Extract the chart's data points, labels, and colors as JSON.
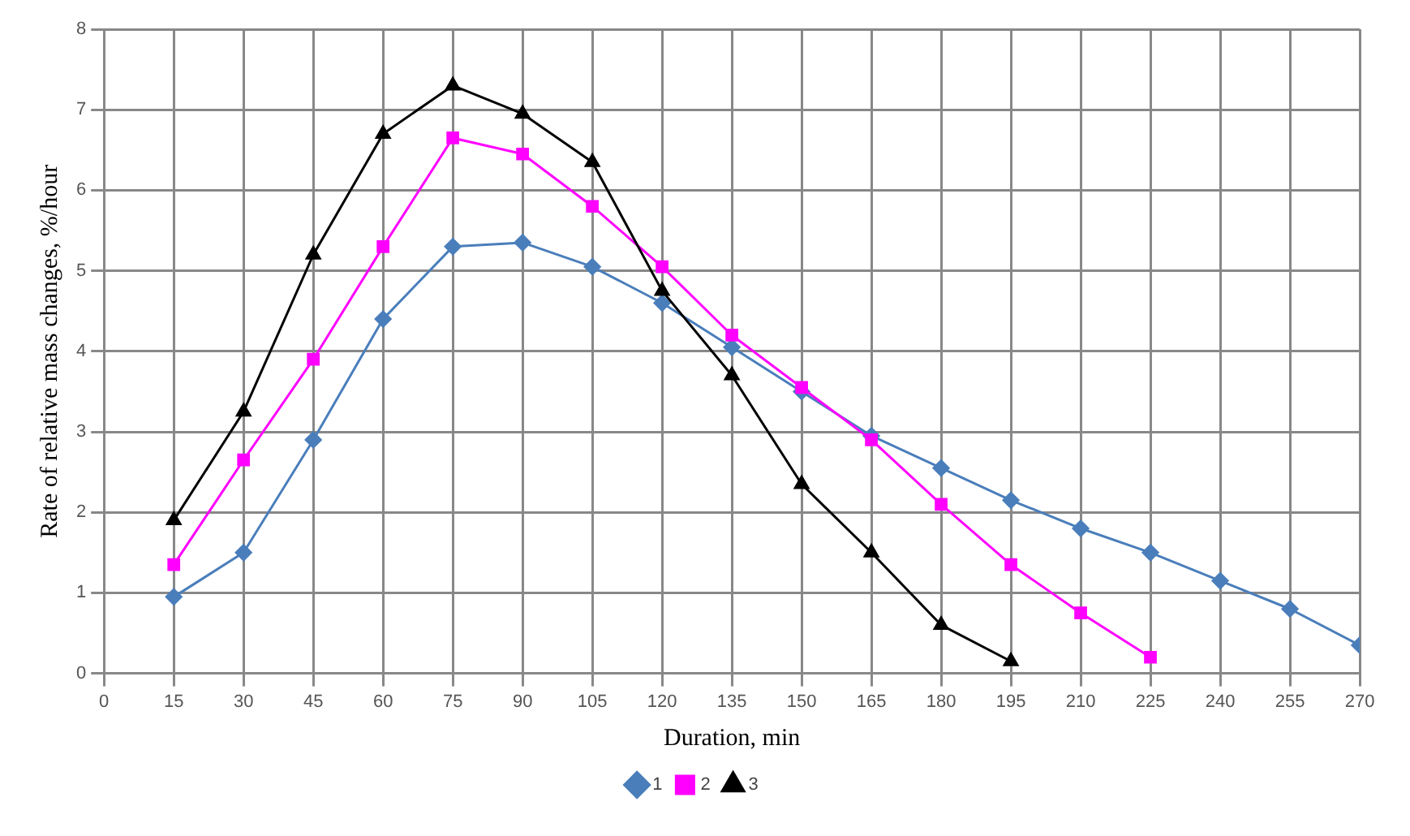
{
  "chart_data": {
    "type": "line",
    "xlabel": "Duration, min",
    "ylabel": "Rate of relative mass changes, %/hour",
    "x": [
      15,
      30,
      45,
      60,
      75,
      90,
      105,
      120,
      135,
      150,
      165,
      180,
      195,
      210,
      225,
      240,
      255,
      270
    ],
    "xlim": [
      0,
      270
    ],
    "xticks": [
      0,
      15,
      30,
      45,
      60,
      75,
      90,
      105,
      120,
      135,
      150,
      165,
      180,
      195,
      210,
      225,
      240,
      255,
      270
    ],
    "ylim": [
      0,
      8
    ],
    "yticks": [
      0,
      1,
      2,
      3,
      4,
      5,
      6,
      7,
      8
    ],
    "grid": true,
    "legend": "bottom",
    "series": [
      {
        "name": "1",
        "color": "#4a7ebb",
        "marker": "diamond",
        "values": [
          0.95,
          1.5,
          2.9,
          4.4,
          5.3,
          5.35,
          5.05,
          4.6,
          4.05,
          3.5,
          2.95,
          2.55,
          2.15,
          1.8,
          1.5,
          1.15,
          0.8,
          0.35
        ]
      },
      {
        "name": "2",
        "color": "#ff00ff",
        "marker": "square",
        "values": [
          1.35,
          2.65,
          3.9,
          5.3,
          6.65,
          6.45,
          5.8,
          5.05,
          4.2,
          3.55,
          2.9,
          2.1,
          1.35,
          0.75,
          0.2,
          null,
          null,
          null
        ]
      },
      {
        "name": "3",
        "color": "#000000",
        "marker": "triangle",
        "values": [
          1.9,
          3.25,
          5.2,
          6.7,
          7.3,
          6.95,
          6.35,
          4.75,
          3.7,
          2.35,
          1.5,
          0.6,
          0.15,
          null,
          null,
          null,
          null,
          null
        ]
      }
    ]
  }
}
